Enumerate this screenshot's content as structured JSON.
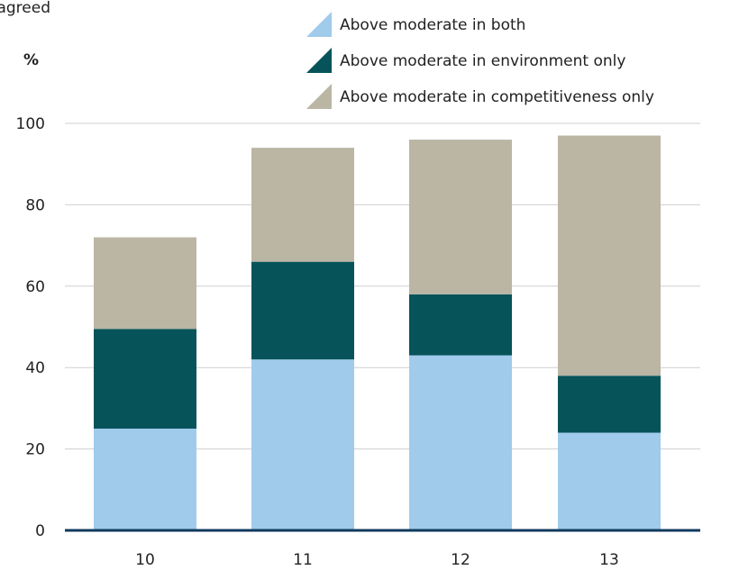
{
  "chart_data": {
    "type": "bar",
    "stacked": true,
    "title_fragment": "agreed",
    "ylabel": "%",
    "categories": [
      "10",
      "11",
      "12",
      "13"
    ],
    "series": [
      {
        "name": "Above moderate in both",
        "color": "#a0cbeb",
        "values": [
          25,
          42,
          43,
          24
        ]
      },
      {
        "name": "Above moderate in environment only",
        "color": "#06545a",
        "values": [
          24.5,
          24,
          15,
          14
        ]
      },
      {
        "name": "Above moderate in competitiveness only",
        "color": "#bbb5a4",
        "values": [
          22.5,
          28,
          38,
          59
        ]
      }
    ],
    "yticks": [
      "0",
      "20",
      "40",
      "60",
      "80",
      "100"
    ],
    "ylim": [
      0,
      100
    ],
    "grid": true,
    "legend_position": "top-right"
  }
}
